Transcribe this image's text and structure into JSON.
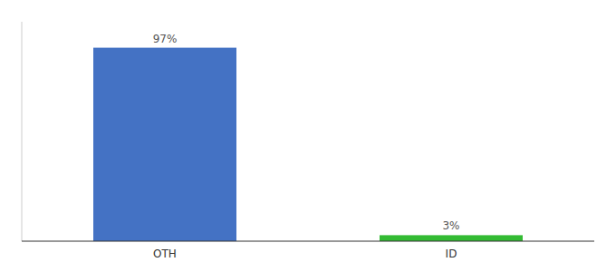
{
  "chart_data": {
    "type": "bar",
    "categories": [
      "OTH",
      "ID"
    ],
    "values": [
      97,
      3
    ],
    "value_labels": [
      "97%",
      "3%"
    ],
    "colors": [
      "#4472c4",
      "#33bb33"
    ],
    "ylim": [
      0,
      110
    ],
    "yticks": [],
    "data_labels": true,
    "tick_labels": "x"
  }
}
